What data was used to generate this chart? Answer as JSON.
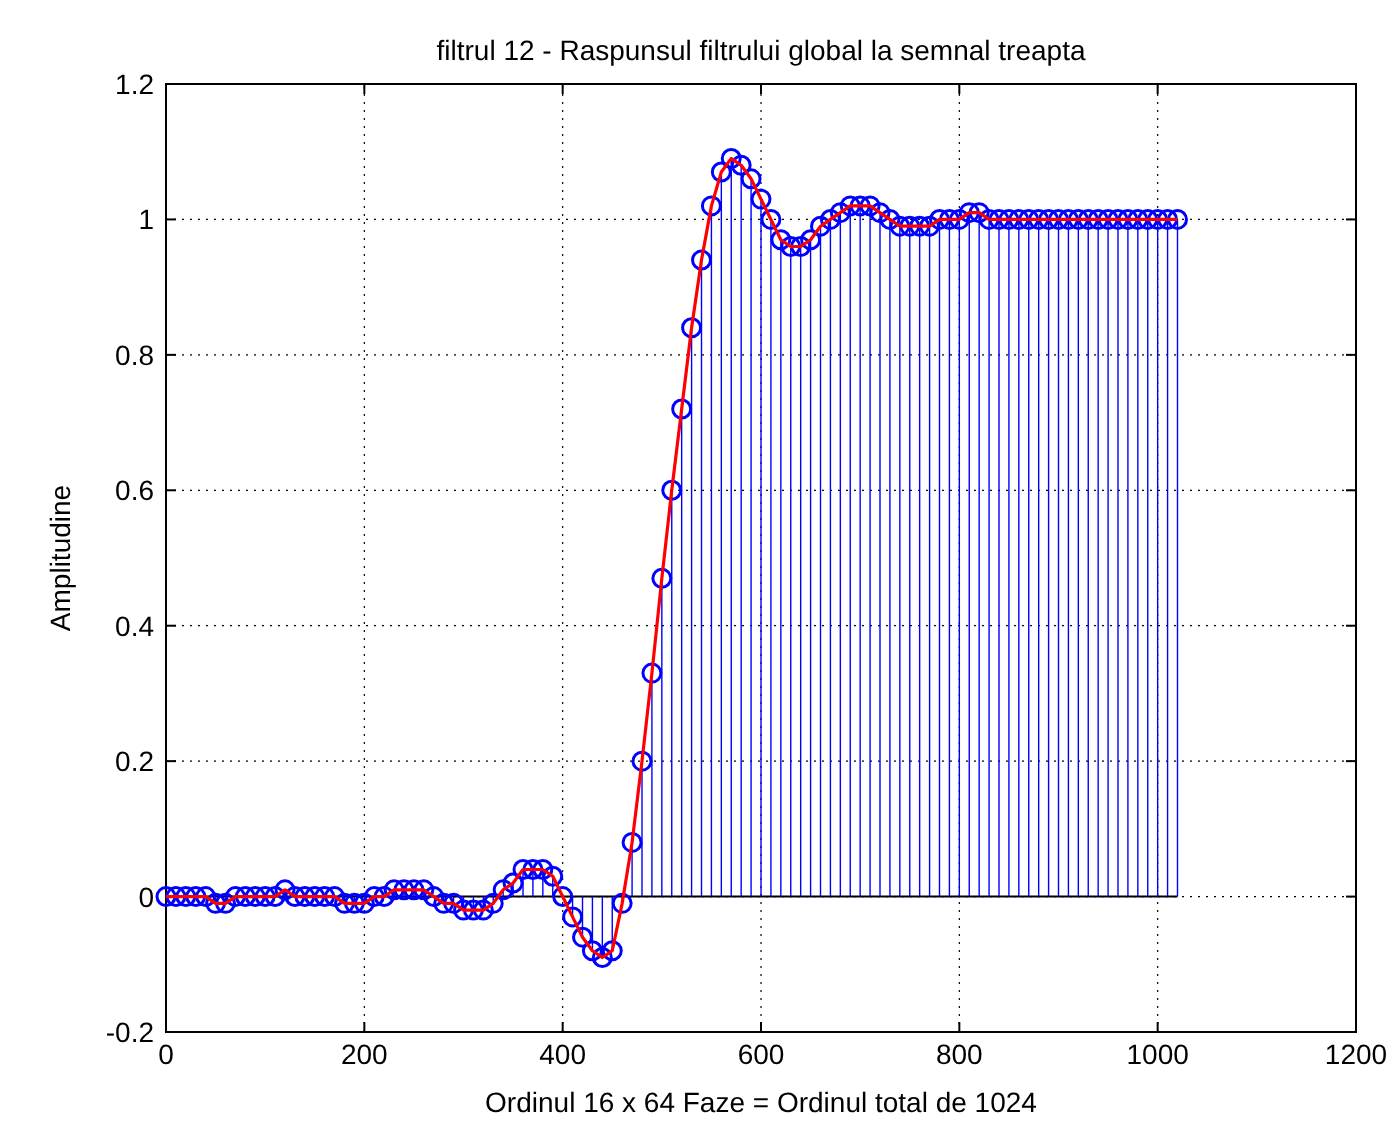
{
  "chart_data": {
    "type": "lollipop",
    "title": "filtrul 12 - Raspunsul filtrului global la semnal treapta",
    "xlabel": "Ordinul 16 x 64 Faze = Ordinul total de 1024",
    "ylabel": "Amplitudine",
    "xlim": [
      0,
      1200
    ],
    "ylim": [
      -0.2,
      1.2
    ],
    "xticks": [
      0,
      200,
      400,
      600,
      800,
      1000,
      1200
    ],
    "yticks": [
      -0.2,
      0,
      0.2,
      0.4,
      0.6,
      0.8,
      1,
      1.2
    ],
    "grid": true,
    "x": [
      0,
      10,
      20,
      30,
      40,
      50,
      60,
      70,
      80,
      90,
      100,
      110,
      120,
      130,
      140,
      150,
      160,
      170,
      180,
      190,
      200,
      210,
      220,
      230,
      240,
      250,
      260,
      270,
      280,
      290,
      300,
      310,
      320,
      330,
      340,
      350,
      360,
      370,
      380,
      390,
      400,
      410,
      420,
      430,
      440,
      450,
      460,
      470,
      480,
      490,
      500,
      510,
      520,
      530,
      540,
      550,
      560,
      570,
      580,
      590,
      600,
      610,
      620,
      630,
      640,
      650,
      660,
      670,
      680,
      690,
      700,
      710,
      720,
      730,
      740,
      750,
      760,
      770,
      780,
      790,
      800,
      810,
      820,
      830,
      840,
      850,
      860,
      870,
      880,
      890,
      900,
      910,
      920,
      930,
      940,
      950,
      960,
      970,
      980,
      990,
      1000,
      1010,
      1020
    ],
    "series": [
      {
        "marker": "circle",
        "color": "#0000ff",
        "values": [
          0,
          0,
          0,
          0,
          0,
          -0.01,
          -0.01,
          0,
          0,
          0,
          0,
          0,
          0.01,
          0,
          0,
          0,
          0,
          0,
          -0.01,
          -0.01,
          -0.01,
          0,
          0,
          0.01,
          0.01,
          0.01,
          0.01,
          0,
          -0.01,
          -0.01,
          -0.02,
          -0.02,
          -0.02,
          -0.01,
          0.01,
          0.02,
          0.04,
          0.04,
          0.04,
          0.03,
          0,
          -0.03,
          -0.06,
          -0.08,
          -0.09,
          -0.08,
          -0.01,
          0.08,
          0.2,
          0.33,
          0.47,
          0.6,
          0.72,
          0.84,
          0.94,
          1.02,
          1.07,
          1.09,
          1.08,
          1.06,
          1.03,
          1,
          0.97,
          0.96,
          0.96,
          0.97,
          0.99,
          1,
          1.01,
          1.02,
          1.02,
          1.02,
          1.01,
          1,
          0.99,
          0.99,
          0.99,
          0.99,
          1,
          1,
          1,
          1.01,
          1.01,
          1,
          1,
          1,
          1,
          1,
          1,
          1,
          1,
          1,
          1,
          1,
          1,
          1,
          1,
          1,
          1,
          1,
          1,
          1,
          1
        ]
      },
      {
        "type": "line",
        "color": "#ff0000",
        "values": [
          0,
          0,
          0,
          0,
          0,
          -0.01,
          -0.01,
          0,
          0,
          0,
          0,
          0,
          0.01,
          0,
          0,
          0,
          0,
          0,
          -0.01,
          -0.01,
          -0.01,
          0,
          0,
          0.01,
          0.01,
          0.01,
          0.01,
          0,
          -0.01,
          -0.01,
          -0.02,
          -0.02,
          -0.02,
          -0.01,
          0.01,
          0.02,
          0.04,
          0.04,
          0.04,
          0.03,
          0,
          -0.03,
          -0.06,
          -0.08,
          -0.09,
          -0.08,
          -0.01,
          0.08,
          0.2,
          0.33,
          0.47,
          0.6,
          0.72,
          0.84,
          0.94,
          1.02,
          1.07,
          1.09,
          1.08,
          1.06,
          1.03,
          1,
          0.97,
          0.96,
          0.96,
          0.97,
          0.99,
          1,
          1.01,
          1.02,
          1.02,
          1.02,
          1.01,
          1,
          0.99,
          0.99,
          0.99,
          0.99,
          1,
          1,
          1,
          1.01,
          1.01,
          1,
          1,
          1,
          1,
          1,
          1,
          1,
          1,
          1,
          1,
          1,
          1,
          1,
          1,
          1,
          1,
          1,
          1,
          1,
          1
        ]
      }
    ]
  }
}
